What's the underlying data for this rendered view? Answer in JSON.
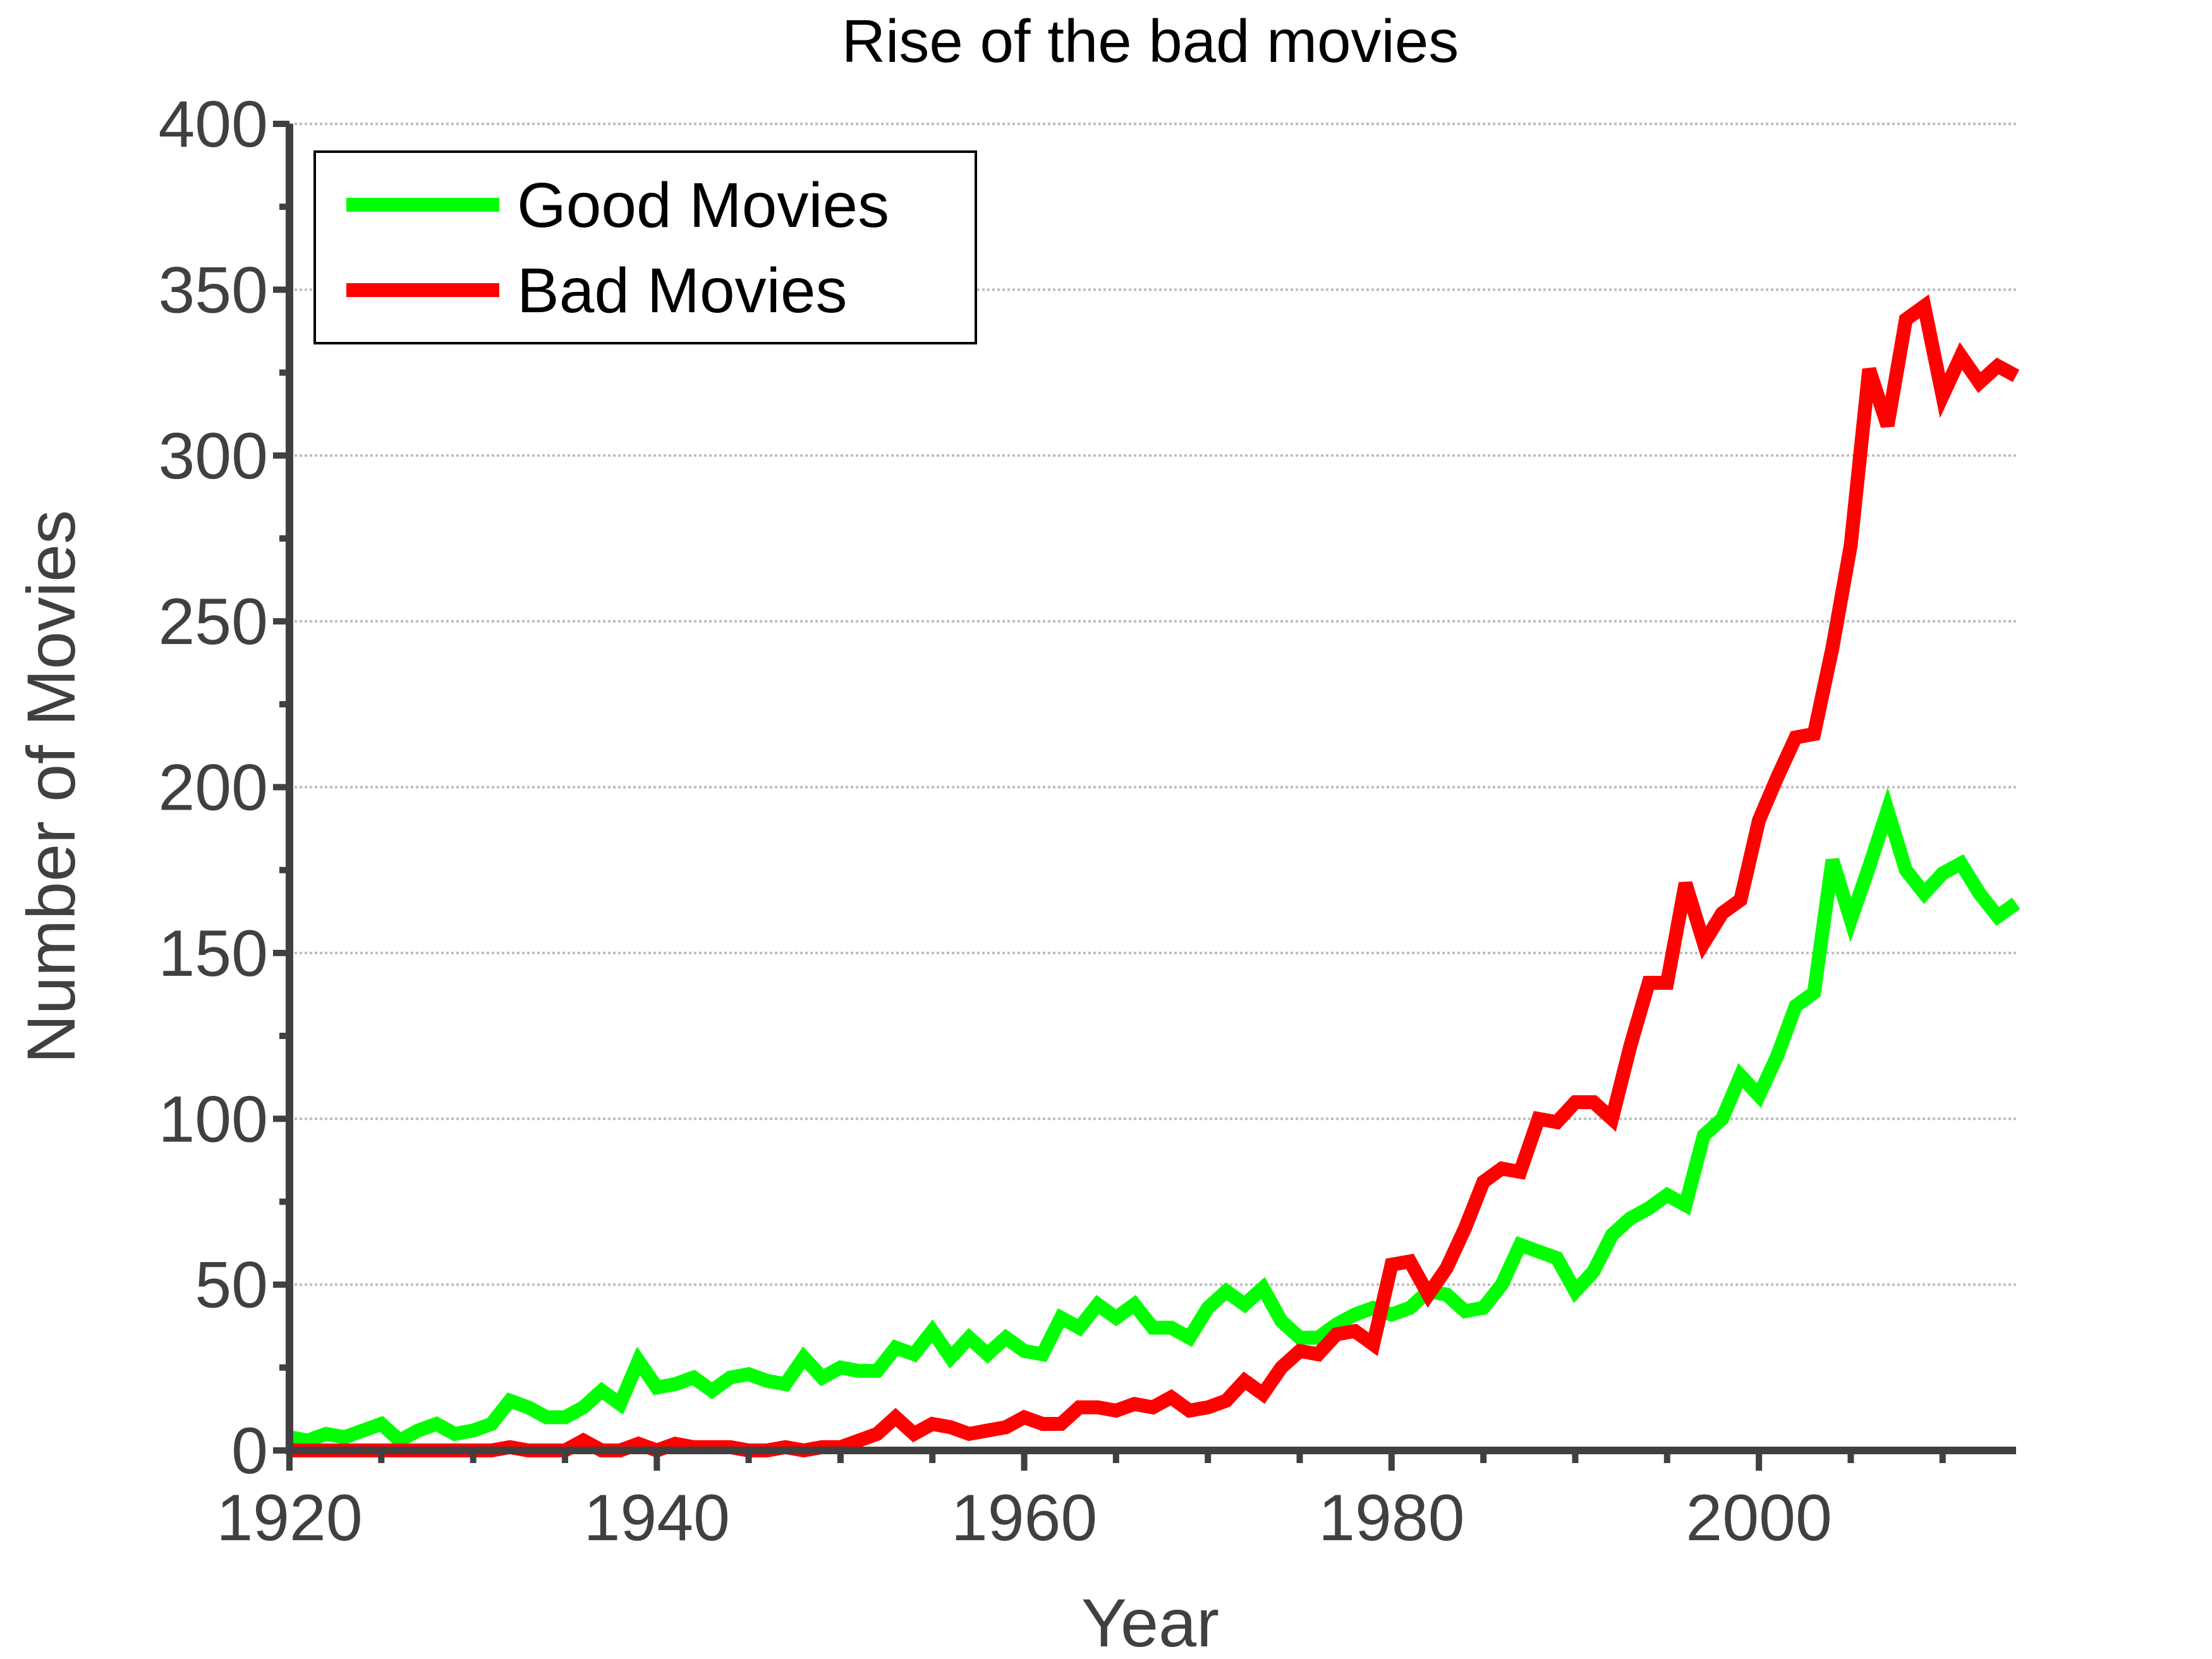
{
  "chart_data": {
    "type": "line",
    "title": "Rise of the bad movies",
    "xlabel": "Year",
    "ylabel": "Number of Movies",
    "xlim": [
      1920,
      2014
    ],
    "ylim": [
      0,
      400
    ],
    "x_ticks": [
      1920,
      1940,
      1960,
      1980,
      2000
    ],
    "y_ticks": [
      0,
      50,
      100,
      150,
      200,
      250,
      300,
      350,
      400
    ],
    "grid": "horizontal-dotted",
    "legend_position": "top-left",
    "x": [
      1920,
      1921,
      1922,
      1923,
      1924,
      1925,
      1926,
      1927,
      1928,
      1929,
      1930,
      1931,
      1932,
      1933,
      1934,
      1935,
      1936,
      1937,
      1938,
      1939,
      1940,
      1941,
      1942,
      1943,
      1944,
      1945,
      1946,
      1947,
      1948,
      1949,
      1950,
      1951,
      1952,
      1953,
      1954,
      1955,
      1956,
      1957,
      1958,
      1959,
      1960,
      1961,
      1962,
      1963,
      1964,
      1965,
      1966,
      1967,
      1968,
      1969,
      1970,
      1971,
      1972,
      1973,
      1974,
      1975,
      1976,
      1977,
      1978,
      1979,
      1980,
      1981,
      1982,
      1983,
      1984,
      1985,
      1986,
      1987,
      1988,
      1989,
      1990,
      1991,
      1992,
      1993,
      1994,
      1995,
      1996,
      1997,
      1998,
      1999,
      2000,
      2001,
      2002,
      2003,
      2004,
      2005,
      2006,
      2007,
      2008,
      2009,
      2010,
      2011,
      2012,
      2013,
      2014
    ],
    "series": [
      {
        "name": "Good Movies",
        "color": "#00ff00",
        "values": [
          4,
          3,
          5,
          4,
          6,
          8,
          3,
          6,
          8,
          5,
          6,
          8,
          15,
          13,
          10,
          10,
          13,
          18,
          14,
          27,
          19,
          20,
          22,
          18,
          22,
          23,
          21,
          20,
          28,
          22,
          25,
          24,
          24,
          31,
          29,
          36,
          28,
          34,
          29,
          34,
          30,
          29,
          40,
          37,
          44,
          40,
          44,
          37,
          37,
          34,
          43,
          48,
          44,
          49,
          39,
          34,
          34,
          38,
          41,
          43,
          41,
          43,
          48,
          47,
          42,
          43,
          50,
          62,
          60,
          58,
          48,
          54,
          65,
          70,
          73,
          77,
          74,
          95,
          100,
          113,
          107,
          119,
          134,
          138,
          178,
          160,
          176,
          193,
          175,
          168,
          174,
          177,
          168,
          161,
          165
        ]
      },
      {
        "name": "Bad Movies",
        "color": "#ff0000",
        "values": [
          0,
          0,
          0,
          0,
          0,
          0,
          0,
          0,
          0,
          0,
          0,
          0,
          1,
          0,
          0,
          0,
          3,
          0,
          0,
          2,
          0,
          2,
          1,
          1,
          1,
          0,
          0,
          1,
          0,
          1,
          1,
          3,
          5,
          10,
          5,
          8,
          7,
          5,
          6,
          7,
          10,
          8,
          8,
          13,
          13,
          12,
          14,
          13,
          16,
          12,
          13,
          15,
          21,
          17,
          25,
          30,
          29,
          35,
          36,
          32,
          56,
          57,
          47,
          55,
          67,
          81,
          85,
          84,
          100,
          99,
          105,
          105,
          100,
          122,
          141,
          141,
          171,
          153,
          162,
          166,
          190,
          203,
          215,
          216,
          242,
          273,
          326,
          309,
          341,
          345,
          318,
          330,
          322,
          327,
          324
        ]
      }
    ]
  }
}
